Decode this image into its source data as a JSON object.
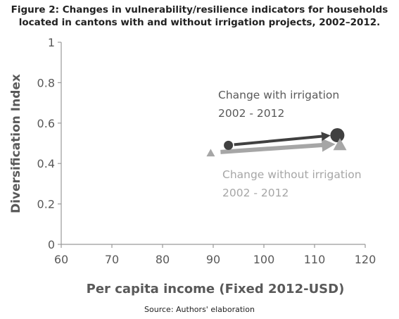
{
  "figure": {
    "title_line1": "Figure 2: Changes in vulnerability/resilience indicators for households",
    "title_line2": "located in cantons with and without irrigation projects, 2002–2012.",
    "source": "Source: Authors' elaboration"
  },
  "chart_data": {
    "type": "scatter",
    "xlabel": "Per capita income (Fixed 2012-USD)",
    "ylabel": "Diversification Index",
    "xlim": [
      60,
      120
    ],
    "ylim": [
      0,
      1
    ],
    "xticks": [
      60,
      70,
      80,
      90,
      100,
      110,
      120
    ],
    "yticks": [
      0,
      0.2,
      0.4,
      0.6,
      0.8,
      1
    ],
    "ytick_labels": [
      "0",
      "0.2",
      "0.4",
      "0.6",
      "0.8",
      "1"
    ],
    "grid": false,
    "colors": {
      "with_irrigation": "#404040",
      "without_irrigation": "#a6a6a6",
      "axis": "#999999",
      "text": "#595959"
    },
    "series": [
      {
        "marker": "circle",
        "points": [
          {
            "x": 93,
            "y": 0.49
          },
          {
            "x": 114.5,
            "y": 0.54
          }
        ]
      },
      {
        "marker": "triangle",
        "points": [
          {
            "x": 89.5,
            "y": 0.45
          },
          {
            "x": 115,
            "y": 0.49
          }
        ]
      }
    ],
    "annotations": [
      {
        "line1": "Change with irrigation",
        "line2": "2002 - 2012"
      },
      {
        "line1": "Change without irrigation",
        "line2": "2002 - 2012"
      }
    ]
  }
}
